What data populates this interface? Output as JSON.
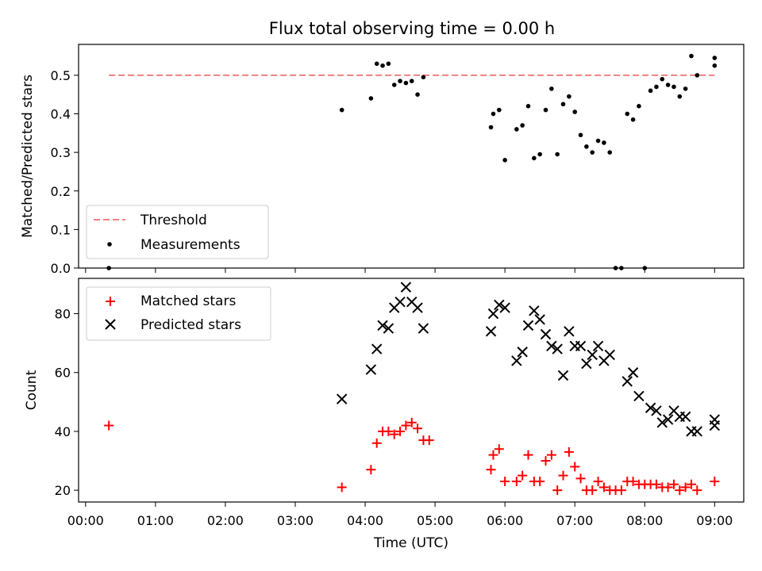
{
  "chart_data": [
    {
      "type": "scatter",
      "title": "Flux total observing time = 0.00 h",
      "xlabel": "",
      "ylabel": "Matched/Predicted stars",
      "xlim": [
        "-00:06",
        "09:25"
      ],
      "ylim": [
        0,
        0.58
      ],
      "yticks": [
        "0.0",
        "0.1",
        "0.2",
        "0.3",
        "0.4",
        "0.5"
      ],
      "grid": false,
      "legend": "lower-left",
      "threshold": {
        "name": "Threshold",
        "value": 0.5,
        "x_range": [
          "00:20",
          "09:00"
        ],
        "color": "#f08080",
        "style": "dashed"
      },
      "series": [
        {
          "name": "Measurements",
          "color": "#000000",
          "marker": "dot",
          "points": [
            [
              "00:20",
              0.0
            ],
            [
              "03:40",
              0.41
            ],
            [
              "04:05",
              0.44
            ],
            [
              "04:10",
              0.53
            ],
            [
              "04:15",
              0.525
            ],
            [
              "04:20",
              0.53
            ],
            [
              "04:25",
              0.475
            ],
            [
              "04:30",
              0.485
            ],
            [
              "04:35",
              0.48
            ],
            [
              "04:40",
              0.485
            ],
            [
              "04:45",
              0.45
            ],
            [
              "04:50",
              0.495
            ],
            [
              "05:48",
              0.365
            ],
            [
              "05:50",
              0.4
            ],
            [
              "05:55",
              0.41
            ],
            [
              "06:00",
              0.28
            ],
            [
              "06:10",
              0.36
            ],
            [
              "06:15",
              0.37
            ],
            [
              "06:20",
              0.42
            ],
            [
              "06:25",
              0.285
            ],
            [
              "06:30",
              0.295
            ],
            [
              "06:35",
              0.41
            ],
            [
              "06:40",
              0.465
            ],
            [
              "06:45",
              0.295
            ],
            [
              "06:50",
              0.425
            ],
            [
              "06:55",
              0.445
            ],
            [
              "07:00",
              0.405
            ],
            [
              "07:05",
              0.345
            ],
            [
              "07:10",
              0.315
            ],
            [
              "07:15",
              0.3
            ],
            [
              "07:20",
              0.33
            ],
            [
              "07:25",
              0.325
            ],
            [
              "07:30",
              0.3
            ],
            [
              "07:35",
              0.0
            ],
            [
              "07:40",
              0.0
            ],
            [
              "07:45",
              0.4
            ],
            [
              "07:50",
              0.385
            ],
            [
              "07:55",
              0.42
            ],
            [
              "08:00",
              0.0
            ],
            [
              "08:05",
              0.46
            ],
            [
              "08:10",
              0.47
            ],
            [
              "08:15",
              0.49
            ],
            [
              "08:20",
              0.475
            ],
            [
              "08:25",
              0.47
            ],
            [
              "08:30",
              0.445
            ],
            [
              "08:35",
              0.465
            ],
            [
              "08:40",
              0.55
            ],
            [
              "08:45",
              0.5
            ],
            [
              "09:00",
              0.545
            ],
            [
              "09:00",
              0.525
            ]
          ]
        }
      ]
    },
    {
      "type": "scatter",
      "title": "",
      "xlabel": "Time (UTC)",
      "ylabel": "Count",
      "xlim": [
        "-00:06",
        "09:25"
      ],
      "ylim": [
        16,
        92
      ],
      "xticks": [
        "00:00",
        "01:00",
        "02:00",
        "03:00",
        "04:00",
        "05:00",
        "06:00",
        "07:00",
        "08:00",
        "09:00"
      ],
      "yticks": [
        "20",
        "40",
        "60",
        "80"
      ],
      "grid": false,
      "legend": "top-left",
      "series": [
        {
          "name": "Matched stars",
          "color": "#ff0000",
          "marker": "plus",
          "points": [
            [
              "00:20",
              42
            ],
            [
              "03:40",
              21
            ],
            [
              "04:05",
              27
            ],
            [
              "04:10",
              36
            ],
            [
              "04:15",
              40
            ],
            [
              "04:20",
              40
            ],
            [
              "04:25",
              39
            ],
            [
              "04:30",
              40
            ],
            [
              "04:35",
              42
            ],
            [
              "04:40",
              43
            ],
            [
              "04:45",
              41
            ],
            [
              "04:50",
              37
            ],
            [
              "04:55",
              37
            ],
            [
              "05:48",
              27
            ],
            [
              "05:50",
              32
            ],
            [
              "05:55",
              34
            ],
            [
              "06:00",
              23
            ],
            [
              "06:10",
              23
            ],
            [
              "06:15",
              25
            ],
            [
              "06:20",
              32
            ],
            [
              "06:25",
              23
            ],
            [
              "06:30",
              23
            ],
            [
              "06:35",
              30
            ],
            [
              "06:40",
              32
            ],
            [
              "06:45",
              20
            ],
            [
              "06:50",
              25
            ],
            [
              "06:55",
              33
            ],
            [
              "07:00",
              28
            ],
            [
              "07:05",
              24
            ],
            [
              "07:10",
              20
            ],
            [
              "07:15",
              20
            ],
            [
              "07:20",
              23
            ],
            [
              "07:25",
              21
            ],
            [
              "07:30",
              20
            ],
            [
              "07:35",
              20
            ],
            [
              "07:40",
              20
            ],
            [
              "07:45",
              23
            ],
            [
              "07:50",
              23
            ],
            [
              "07:55",
              22
            ],
            [
              "08:00",
              22
            ],
            [
              "08:05",
              22
            ],
            [
              "08:10",
              22
            ],
            [
              "08:15",
              21
            ],
            [
              "08:20",
              21
            ],
            [
              "08:25",
              22
            ],
            [
              "08:30",
              20
            ],
            [
              "08:35",
              21
            ],
            [
              "08:40",
              22
            ],
            [
              "08:45",
              20
            ],
            [
              "09:00",
              23
            ]
          ]
        },
        {
          "name": "Predicted stars",
          "color": "#000000",
          "marker": "x",
          "points": [
            [
              "03:40",
              51
            ],
            [
              "04:05",
              61
            ],
            [
              "04:10",
              68
            ],
            [
              "04:15",
              76
            ],
            [
              "04:20",
              75
            ],
            [
              "04:25",
              82
            ],
            [
              "04:30",
              84
            ],
            [
              "04:35",
              89
            ],
            [
              "04:40",
              84
            ],
            [
              "04:45",
              82
            ],
            [
              "04:50",
              75
            ],
            [
              "05:48",
              74
            ],
            [
              "05:50",
              80
            ],
            [
              "05:55",
              83
            ],
            [
              "06:00",
              82
            ],
            [
              "06:10",
              64
            ],
            [
              "06:15",
              67
            ],
            [
              "06:20",
              76
            ],
            [
              "06:25",
              81
            ],
            [
              "06:30",
              78
            ],
            [
              "06:35",
              73
            ],
            [
              "06:40",
              69
            ],
            [
              "06:45",
              68
            ],
            [
              "06:50",
              59
            ],
            [
              "06:55",
              74
            ],
            [
              "07:00",
              69
            ],
            [
              "07:05",
              69
            ],
            [
              "07:10",
              63
            ],
            [
              "07:15",
              66
            ],
            [
              "07:20",
              69
            ],
            [
              "07:25",
              64
            ],
            [
              "07:30",
              66
            ],
            [
              "07:45",
              57
            ],
            [
              "07:50",
              60
            ],
            [
              "07:55",
              52
            ],
            [
              "08:05",
              48
            ],
            [
              "08:10",
              47
            ],
            [
              "08:15",
              43
            ],
            [
              "08:20",
              44
            ],
            [
              "08:25",
              47
            ],
            [
              "08:30",
              45
            ],
            [
              "08:35",
              45
            ],
            [
              "08:40",
              40
            ],
            [
              "08:45",
              40
            ],
            [
              "09:00",
              44
            ],
            [
              "09:00",
              42
            ]
          ]
        }
      ]
    }
  ]
}
